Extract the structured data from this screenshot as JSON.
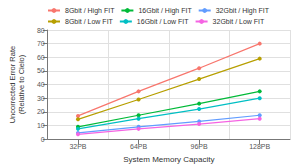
{
  "chart_data": {
    "type": "line",
    "x_label": "System Memory Capacity",
    "y_label": "Uncorrected Error Rate\n(Relative to Cielo)",
    "categories": [
      "32PB",
      "64PB",
      "96PB",
      "128PB"
    ],
    "series": [
      {
        "name": "8Gbit / High FIT",
        "color": "#F8766D",
        "values": [
          17,
          35,
          52,
          70
        ]
      },
      {
        "name": "16Gbit / High FIT",
        "color": "#00BA38",
        "values": [
          9,
          17.5,
          26,
          35
        ]
      },
      {
        "name": "32Gbit / High FIT",
        "color": "#619CFF",
        "values": [
          4.5,
          9,
          13,
          17.5
        ]
      },
      {
        "name": "8Gbit / Low FIT",
        "color": "#B79F00",
        "values": [
          14.5,
          29,
          44,
          59
        ]
      },
      {
        "name": "16Gbit / Low FIT",
        "color": "#00BFC4",
        "values": [
          7.5,
          15,
          22,
          30
        ]
      },
      {
        "name": "32Gbit / Low FIT",
        "color": "#F564E3",
        "values": [
          3.5,
          7.5,
          11,
          15
        ]
      }
    ],
    "ylim": [
      0,
      80
    ],
    "yticks": [
      0,
      10,
      20,
      30,
      40,
      50,
      60,
      70,
      80
    ],
    "grid": true,
    "legend": "top",
    "marker": "circle"
  }
}
